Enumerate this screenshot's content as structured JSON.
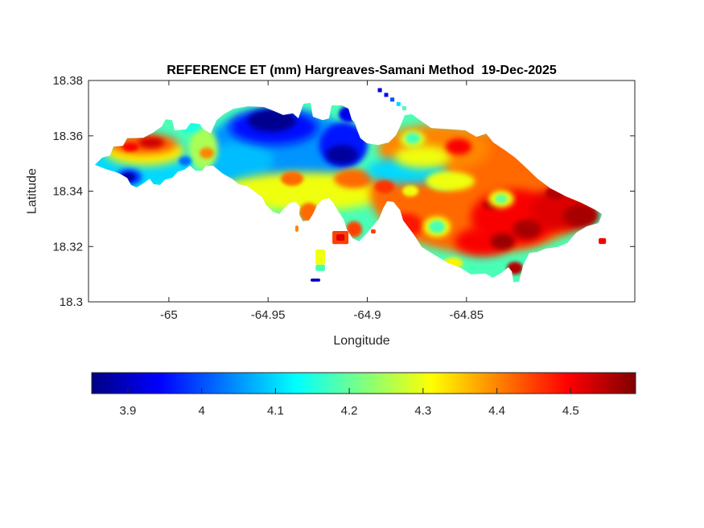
{
  "title": {
    "text": "REFERENCE ET (mm) Hargreaves-Samani Method  19-Dec-2025"
  },
  "axes": {
    "xlabel": "Longitude",
    "ylabel": "Latitude",
    "xlim": [
      -65.0405,
      -64.7652
    ],
    "ylim": [
      18.3,
      18.38
    ],
    "xticks": [
      {
        "value": -65.0,
        "label": "-65"
      },
      {
        "value": -64.95,
        "label": "-64.95"
      },
      {
        "value": -64.9,
        "label": "-64.9"
      },
      {
        "value": -64.85,
        "label": "-64.85"
      }
    ],
    "yticks": [
      {
        "value": 18.3,
        "label": "18.3"
      },
      {
        "value": 18.32,
        "label": "18.32"
      },
      {
        "value": 18.34,
        "label": "18.34"
      },
      {
        "value": 18.36,
        "label": "18.36"
      },
      {
        "value": 18.38,
        "label": "18.38"
      }
    ]
  },
  "colorbar": {
    "orientation": "horizontal",
    "min": 3.851,
    "max": 4.588,
    "ticks": [
      {
        "value": 3.9,
        "label": "3.9"
      },
      {
        "value": 4.0,
        "label": "4"
      },
      {
        "value": 4.1,
        "label": "4.1"
      },
      {
        "value": 4.2,
        "label": "4.2"
      },
      {
        "value": 4.3,
        "label": "4.3"
      },
      {
        "value": 4.4,
        "label": "4.4"
      },
      {
        "value": 4.5,
        "label": "4.5"
      }
    ],
    "stops": [
      {
        "t": 0,
        "rgb": [
          0,
          0,
          131
        ]
      },
      {
        "t": 0.125,
        "rgb": [
          0,
          0,
          255
        ]
      },
      {
        "t": 0.375,
        "rgb": [
          0,
          255,
          255
        ]
      },
      {
        "t": 0.625,
        "rgb": [
          255,
          255,
          0
        ]
      },
      {
        "t": 0.875,
        "rgb": [
          255,
          0,
          0
        ]
      },
      {
        "t": 1,
        "rgb": [
          128,
          0,
          0
        ]
      }
    ]
  },
  "chart_data": {
    "type": "heatmap",
    "title": "REFERENCE ET (mm) Hargreaves-Samani Method  19-Dec-2025",
    "units": "mm",
    "method": "Hargreaves-Samani",
    "date": "19-Dec-2025",
    "xlabel": "Longitude",
    "ylabel": "Latitude",
    "value_range": [
      3.85,
      4.59
    ],
    "base_value": 4.18,
    "island_outline": [
      [
        -65.0373,
        18.3495
      ],
      [
        -65.0336,
        18.3521
      ],
      [
        -65.0296,
        18.3529
      ],
      [
        -65.0279,
        18.3561
      ],
      [
        -65.0231,
        18.3564
      ],
      [
        -65.021,
        18.3591
      ],
      [
        -65.0129,
        18.3593
      ],
      [
        -65.0081,
        18.3611
      ],
      [
        -65.0036,
        18.3634
      ],
      [
        -65.0016,
        18.366
      ],
      [
        -64.9983,
        18.3657
      ],
      [
        -64.9971,
        18.362
      ],
      [
        -64.9914,
        18.3623
      ],
      [
        -64.989,
        18.3646
      ],
      [
        -64.9845,
        18.3643
      ],
      [
        -64.9825,
        18.3623
      ],
      [
        -64.9789,
        18.3608
      ],
      [
        -64.976,
        18.3657
      ],
      [
        -64.9724,
        18.3678
      ],
      [
        -64.9675,
        18.3698
      ],
      [
        -64.9602,
        18.3707
      ],
      [
        -64.9521,
        18.3704
      ],
      [
        -64.9468,
        18.3689
      ],
      [
        -64.9424,
        18.3675
      ],
      [
        -64.9375,
        18.3681
      ],
      [
        -64.9347,
        18.3663
      ],
      [
        -64.9322,
        18.3716
      ],
      [
        -64.9286,
        18.3719
      ],
      [
        -64.9274,
        18.3669
      ],
      [
        -64.9225,
        18.3657
      ],
      [
        -64.9193,
        18.3663
      ],
      [
        -64.918,
        18.371
      ],
      [
        -64.9128,
        18.371
      ],
      [
        -64.9095,
        18.3698
      ],
      [
        -64.9079,
        18.366
      ],
      [
        -64.9063,
        18.3646
      ],
      [
        -64.9051,
        18.362
      ],
      [
        -64.9035,
        18.3591
      ],
      [
        -64.9002,
        18.3573
      ],
      [
        -64.8945,
        18.3567
      ],
      [
        -64.8892,
        18.3576
      ],
      [
        -64.8856,
        18.3602
      ],
      [
        -64.8835,
        18.3634
      ],
      [
        -64.8811,
        18.3675
      ],
      [
        -64.8775,
        18.3678
      ],
      [
        -64.8734,
        18.3657
      ],
      [
        -64.8677,
        18.3628
      ],
      [
        -64.8572,
        18.3623
      ],
      [
        -64.8507,
        18.362
      ],
      [
        -64.845,
        18.3596
      ],
      [
        -64.8401,
        18.3608
      ],
      [
        -64.8365,
        18.3576
      ],
      [
        -64.8304,
        18.3547
      ],
      [
        -64.8255,
        18.3521
      ],
      [
        -64.8202,
        18.3486
      ],
      [
        -64.8142,
        18.3445
      ],
      [
        -64.8077,
        18.341
      ],
      [
        -64.8,
        18.3381
      ],
      [
        -64.7923,
        18.3358
      ],
      [
        -64.785,
        18.3332
      ],
      [
        -64.7817,
        18.3317
      ],
      [
        -64.7834,
        18.3285
      ],
      [
        -64.7895,
        18.3273
      ],
      [
        -64.7947,
        18.325
      ],
      [
        -64.7992,
        18.3212
      ],
      [
        -64.8041,
        18.3198
      ],
      [
        -64.8102,
        18.3192
      ],
      [
        -64.8142,
        18.318
      ],
      [
        -64.8183,
        18.3177
      ],
      [
        -64.8215,
        18.3131
      ],
      [
        -64.8235,
        18.3073
      ],
      [
        -64.8264,
        18.307
      ],
      [
        -64.8272,
        18.311
      ],
      [
        -64.8288,
        18.3125
      ],
      [
        -64.8328,
        18.3102
      ],
      [
        -64.8369,
        18.3087
      ],
      [
        -64.8405,
        18.3102
      ],
      [
        -64.8478,
        18.3099
      ],
      [
        -64.8527,
        18.3122
      ],
      [
        -64.8592,
        18.314
      ],
      [
        -64.8661,
        18.3169
      ],
      [
        -64.8726,
        18.3198
      ],
      [
        -64.8766,
        18.3244
      ],
      [
        -64.8819,
        18.3294
      ],
      [
        -64.8835,
        18.3332
      ],
      [
        -64.8868,
        18.3361
      ],
      [
        -64.89,
        18.3364
      ],
      [
        -64.8921,
        18.3337
      ],
      [
        -64.8941,
        18.33
      ],
      [
        -64.8973,
        18.3273
      ],
      [
        -64.9014,
        18.3238
      ],
      [
        -64.9042,
        18.3218
      ],
      [
        -64.9075,
        18.323
      ],
      [
        -64.9103,
        18.3262
      ],
      [
        -64.9119,
        18.3297
      ],
      [
        -64.9148,
        18.3329
      ],
      [
        -64.9172,
        18.3358
      ],
      [
        -64.9193,
        18.3375
      ],
      [
        -64.9229,
        18.3369
      ],
      [
        -64.9253,
        18.3349
      ],
      [
        -64.9274,
        18.3317
      ],
      [
        -64.9294,
        18.3294
      ],
      [
        -64.9326,
        18.3291
      ],
      [
        -64.9343,
        18.3317
      ],
      [
        -64.9339,
        18.3343
      ],
      [
        -64.9359,
        18.3361
      ],
      [
        -64.9391,
        18.3358
      ],
      [
        -64.9416,
        18.334
      ],
      [
        -64.9444,
        18.3317
      ],
      [
        -64.9477,
        18.3326
      ],
      [
        -64.9509,
        18.3349
      ],
      [
        -64.9529,
        18.3378
      ],
      [
        -64.9562,
        18.3396
      ],
      [
        -64.9606,
        18.3419
      ],
      [
        -64.9647,
        18.3425
      ],
      [
        -64.9683,
        18.3445
      ],
      [
        -64.9728,
        18.3463
      ],
      [
        -64.9777,
        18.3492
      ],
      [
        -64.9813,
        18.3492
      ],
      [
        -64.9833,
        18.3474
      ],
      [
        -64.9866,
        18.3474
      ],
      [
        -64.9894,
        18.3492
      ],
      [
        -64.9922,
        18.3477
      ],
      [
        -64.9955,
        18.3471
      ],
      [
        -64.9983,
        18.3448
      ],
      [
        -65.002,
        18.3442
      ],
      [
        -65.0044,
        18.3422
      ],
      [
        -65.0077,
        18.3425
      ],
      [
        -65.0097,
        18.3445
      ],
      [
        -65.0129,
        18.3428
      ],
      [
        -65.0162,
        18.3413
      ],
      [
        -65.019,
        18.3422
      ],
      [
        -65.021,
        18.3448
      ],
      [
        -65.0247,
        18.3463
      ],
      [
        -65.0275,
        18.3471
      ],
      [
        -65.0307,
        18.3477
      ],
      [
        -65.034,
        18.3486
      ]
    ],
    "blobs": [
      {
        "name": "west-base",
        "lon": -65.0141,
        "lat": 18.3509,
        "rx": 0.0264,
        "ry": 0.0102,
        "v": 4.1
      },
      {
        "name": "central-cyan",
        "lon": -64.9432,
        "lat": 18.3553,
        "rx": 0.0385,
        "ry": 0.0145,
        "v": 4.05
      },
      {
        "name": "cyan-sw",
        "lon": -64.9635,
        "lat": 18.3509,
        "rx": 0.0162,
        "ry": 0.0073,
        "v": 4.08
      },
      {
        "name": "cyan-south-coast",
        "lon": -64.9513,
        "lat": 18.3378,
        "rx": 0.0057,
        "ry": 0.0023,
        "v": 4.1
      },
      {
        "name": "isthmus-green",
        "lon": -64.9825,
        "lat": 18.3553,
        "rx": 0.0073,
        "ry": 0.0073,
        "v": 4.25
      },
      {
        "name": "west-yellow",
        "lon": -65.0121,
        "lat": 18.3544,
        "rx": 0.0203,
        "ry": 0.0052,
        "v": 4.32
      },
      {
        "name": "west-orange",
        "lon": -65.0129,
        "lat": 18.357,
        "rx": 0.017,
        "ry": 0.0035,
        "v": 4.44
      },
      {
        "name": "west-red-1",
        "lon": -65.0089,
        "lat": 18.3576,
        "rx": 0.0065,
        "ry": 0.002,
        "v": 4.53
      },
      {
        "name": "west-red-2",
        "lon": -65.0194,
        "lat": 18.3559,
        "rx": 0.0041,
        "ry": 0.0015,
        "v": 4.5
      },
      {
        "name": "green-bump-north",
        "lon": -64.989,
        "lat": 18.3634,
        "rx": 0.0049,
        "ry": 0.0023,
        "v": 4.15
      },
      {
        "name": "west-blue-small",
        "lon": -64.9918,
        "lat": 18.3509,
        "rx": 0.0032,
        "ry": 0.0017,
        "v": 4.02
      },
      {
        "name": "west-blue-halo",
        "lon": -65.0202,
        "lat": 18.3451,
        "rx": 0.0065,
        "ry": 0.0029,
        "v": 3.98
      },
      {
        "name": "west-darkblue",
        "lon": -65.0206,
        "lat": 18.3451,
        "rx": 0.0036,
        "ry": 0.0017,
        "v": 3.88
      },
      {
        "name": "central-blue",
        "lon": -64.9472,
        "lat": 18.3631,
        "rx": 0.0223,
        "ry": 0.0064,
        "v": 3.95
      },
      {
        "name": "darkblue-west-core",
        "lon": -64.9481,
        "lat": 18.3655,
        "rx": 0.0122,
        "ry": 0.0041,
        "v": 3.86
      },
      {
        "name": "blue-north-bump",
        "lon": -64.9095,
        "lat": 18.3678,
        "rx": 0.0049,
        "ry": 0.0029,
        "v": 3.93
      },
      {
        "name": "blue-halo-east",
        "lon": -64.912,
        "lat": 18.3567,
        "rx": 0.0122,
        "ry": 0.0081,
        "v": 3.96
      },
      {
        "name": "darkblue-east-core",
        "lon": -64.9128,
        "lat": 18.3532,
        "rx": 0.0081,
        "ry": 0.0035,
        "v": 3.87
      },
      {
        "name": "yellow-band",
        "lon": -64.931,
        "lat": 18.3399,
        "rx": 0.0426,
        "ry": 0.007,
        "v": 4.3
      },
      {
        "name": "orange-mid-1",
        "lon": -64.9379,
        "lat": 18.3445,
        "rx": 0.0057,
        "ry": 0.0026,
        "v": 4.42
      },
      {
        "name": "orange-mid-2",
        "lon": -64.9067,
        "lat": 18.3445,
        "rx": 0.0101,
        "ry": 0.0035,
        "v": 4.42
      },
      {
        "name": "orange-peninsula",
        "lon": -64.9294,
        "lat": 18.3323,
        "rx": 0.0049,
        "ry": 0.0035,
        "v": 4.42
      },
      {
        "name": "isthmus-orange",
        "lon": -64.9809,
        "lat": 18.3538,
        "rx": 0.0036,
        "ry": 0.002,
        "v": 4.4
      },
      {
        "name": "east-base",
        "lon": -64.8418,
        "lat": 18.3393,
        "rx": 0.0568,
        "ry": 0.0218,
        "v": 4.42
      },
      {
        "name": "east-base-north",
        "lon": -64.8662,
        "lat": 18.3553,
        "rx": 0.0284,
        "ry": 0.0087,
        "v": 4.4
      },
      {
        "name": "cyan-tongue",
        "lon": -64.8803,
        "lat": 18.3474,
        "rx": 0.0203,
        "ry": 0.0047,
        "v": 4.1
      },
      {
        "name": "green-tongue-edge",
        "lon": -64.8621,
        "lat": 18.3436,
        "rx": 0.0073,
        "ry": 0.0029,
        "v": 4.2
      },
      {
        "name": "yellow-ne-1",
        "lon": -64.8722,
        "lat": 18.3524,
        "rx": 0.0142,
        "ry": 0.0041,
        "v": 4.3
      },
      {
        "name": "yellow-ne-2",
        "lon": -64.8581,
        "lat": 18.3436,
        "rx": 0.0122,
        "ry": 0.0035,
        "v": 4.3
      },
      {
        "name": "green-spot-n-halo",
        "lon": -64.8771,
        "lat": 18.3588,
        "rx": 0.0065,
        "ry": 0.0032,
        "v": 4.28
      },
      {
        "name": "green-spot-n",
        "lon": -64.8771,
        "lat": 18.3591,
        "rx": 0.0036,
        "ry": 0.002,
        "v": 4.18
      },
      {
        "name": "red-ne",
        "lon": -64.854,
        "lat": 18.3561,
        "rx": 0.0065,
        "ry": 0.0029,
        "v": 4.5
      },
      {
        "name": "red-east-1",
        "lon": -64.8256,
        "lat": 18.3305,
        "rx": 0.0223,
        "ry": 0.0102,
        "v": 4.5
      },
      {
        "name": "red-east-2",
        "lon": -64.8013,
        "lat": 18.3335,
        "rx": 0.0162,
        "ry": 0.0081,
        "v": 4.52
      },
      {
        "name": "red-east-3",
        "lon": -64.8418,
        "lat": 18.3218,
        "rx": 0.0142,
        "ry": 0.0052,
        "v": 4.5
      },
      {
        "name": "red-east-4",
        "lon": -64.8913,
        "lat": 18.3416,
        "rx": 0.0049,
        "ry": 0.0023,
        "v": 4.46
      },
      {
        "name": "red-east-5",
        "lon": -64.8803,
        "lat": 18.3276,
        "rx": 0.0081,
        "ry": 0.0044,
        "v": 4.48
      },
      {
        "name": "red-east-6",
        "lon": -64.9067,
        "lat": 18.3262,
        "rx": 0.0041,
        "ry": 0.0029,
        "v": 4.45
      },
      {
        "name": "darkred-1",
        "lon": -64.7924,
        "lat": 18.3311,
        "rx": 0.0089,
        "ry": 0.0041,
        "v": 4.56
      },
      {
        "name": "darkred-2",
        "lon": -64.8195,
        "lat": 18.3262,
        "rx": 0.0073,
        "ry": 0.0035,
        "v": 4.56
      },
      {
        "name": "darkred-3",
        "lon": -64.8317,
        "lat": 18.3218,
        "rx": 0.0061,
        "ry": 0.0029,
        "v": 4.57
      },
      {
        "name": "darkred-4",
        "lon": -64.8053,
        "lat": 18.3393,
        "rx": 0.0049,
        "ry": 0.0023,
        "v": 4.55
      },
      {
        "name": "darkred-5",
        "lon": -64.8256,
        "lat": 18.3122,
        "rx": 0.0041,
        "ry": 0.0023,
        "v": 4.55
      },
      {
        "name": "darkred-6",
        "lon": -64.8378,
        "lat": 18.3349,
        "rx": 0.0041,
        "ry": 0.0017,
        "v": 4.54
      },
      {
        "name": "green-se-halo",
        "lon": -64.8325,
        "lat": 18.3372,
        "rx": 0.0065,
        "ry": 0.0032,
        "v": 4.3
      },
      {
        "name": "green-se",
        "lon": -64.8325,
        "lat": 18.3372,
        "rx": 0.0032,
        "ry": 0.0017,
        "v": 4.2
      },
      {
        "name": "green-s-halo",
        "lon": -64.8649,
        "lat": 18.3271,
        "rx": 0.0069,
        "ry": 0.0038,
        "v": 4.3
      },
      {
        "name": "green-s",
        "lon": -64.8649,
        "lat": 18.3271,
        "rx": 0.0041,
        "ry": 0.0023,
        "v": 4.18
      },
      {
        "name": "yellow-s-1",
        "lon": -64.8568,
        "lat": 18.314,
        "rx": 0.0049,
        "ry": 0.002,
        "v": 4.32
      },
      {
        "name": "yellow-s-2",
        "lon": -64.8783,
        "lat": 18.3401,
        "rx": 0.0041,
        "ry": 0.002,
        "v": 4.3
      }
    ],
    "islets": [
      {
        "name": "islet-harbor-orange",
        "lon": [
          -64.9176,
          -64.9095
        ],
        "lat": [
          18.3209,
          18.3256
        ],
        "v": 4.45
      },
      {
        "name": "islet-harbor-red-core",
        "lon": [
          -64.9156,
          -64.9115
        ],
        "lat": [
          18.3221,
          18.3244
        ],
        "v": 4.52
      },
      {
        "name": "islet-south-yellow",
        "lon": [
          -64.9261,
          -64.9213
        ],
        "lat": [
          18.3134,
          18.3189
        ],
        "v": 4.3
      },
      {
        "name": "islet-south-green-tip",
        "lon": [
          -64.9261,
          -64.9213
        ],
        "lat": [
          18.3111,
          18.3134
        ],
        "v": 4.18
      },
      {
        "name": "islet-blue-dash",
        "lon": [
          -64.9286,
          -64.9237
        ],
        "lat": [
          18.3073,
          18.3084
        ],
        "v": 3.9
      },
      {
        "name": "islet-east-red-dot",
        "lon": [
          -64.7834,
          -64.7797
        ],
        "lat": [
          18.3209,
          18.323
        ],
        "v": 4.5
      },
      {
        "name": "islet-tiny-dot",
        "lon": [
          -64.8982,
          -64.8958
        ],
        "lat": [
          18.3247,
          18.3262
        ],
        "v": 4.45
      },
      {
        "name": "islet-tiny-dash",
        "lon": [
          -64.9363,
          -64.9347
        ],
        "lat": [
          18.3253,
          18.3276
        ],
        "v": 4.4
      }
    ],
    "offshore_streak": [
      {
        "lon": -64.8937,
        "lat": 18.3765,
        "v": 3.9
      },
      {
        "lon": -64.8905,
        "lat": 18.3748,
        "v": 3.95
      },
      {
        "lon": -64.8874,
        "lat": 18.3731,
        "v": 4.0
      },
      {
        "lon": -64.8843,
        "lat": 18.3715,
        "v": 4.1
      },
      {
        "lon": -64.8814,
        "lat": 18.37,
        "v": 4.18
      }
    ]
  }
}
